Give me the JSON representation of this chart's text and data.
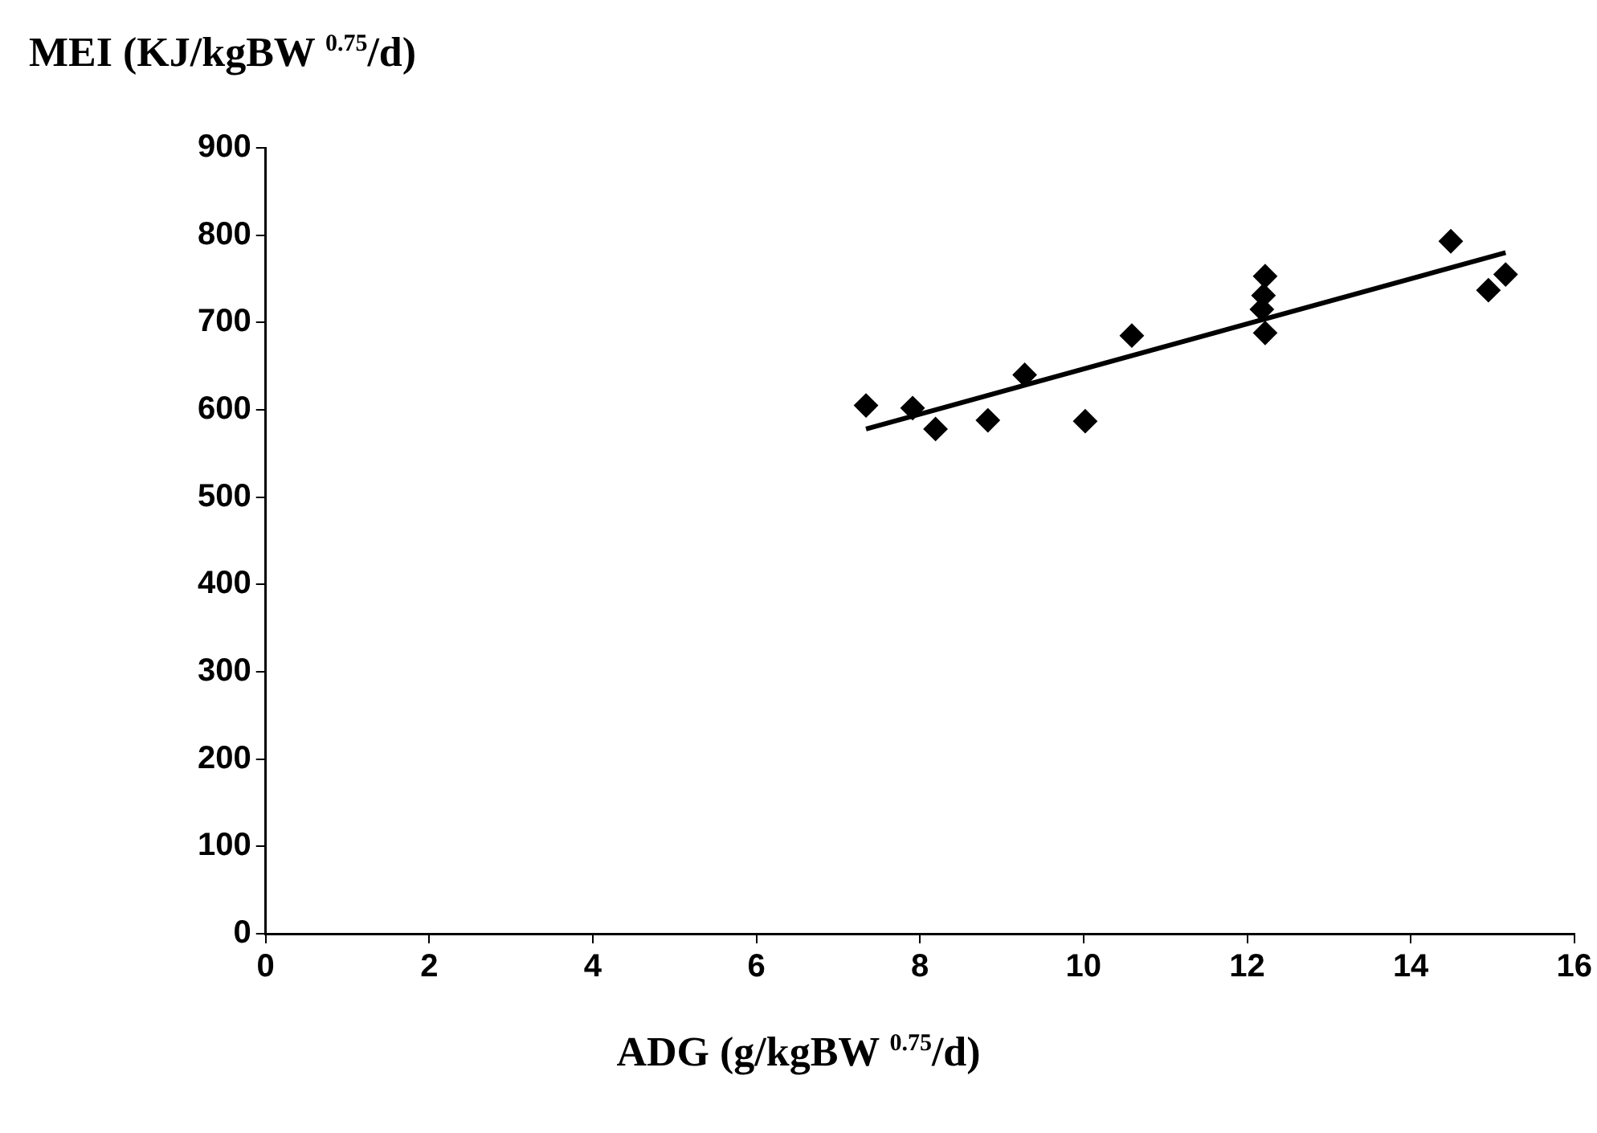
{
  "chart_data": {
    "type": "scatter",
    "xlabel": "ADG (g/kgBW $^{0.75}$/d)",
    "ylabel": "MEI (KJ/kgBW $^{0.75}$/d)",
    "marker": "diamond",
    "grid": false,
    "legend": false,
    "xlim": [
      0,
      16
    ],
    "xticks": [
      0,
      2,
      4,
      6,
      8,
      10,
      12,
      14,
      16
    ],
    "ylim": [
      0,
      900
    ],
    "yticks": [
      0,
      100,
      200,
      300,
      400,
      500,
      600,
      700,
      800,
      900
    ],
    "series": [
      {
        "color": "#000000",
        "x": [
          7.34,
          7.91,
          8.19,
          8.83,
          9.28,
          10.02,
          10.59,
          12.22,
          12.2,
          12.18,
          12.22,
          14.49,
          14.95,
          15.16
        ],
        "values": [
          605,
          602,
          578,
          588,
          640,
          587,
          685,
          753,
          731,
          715,
          688,
          793,
          737,
          755
        ]
      },
      {
        "type": "line",
        "color": "#000000",
        "marker": "none",
        "x": [
          7.34,
          15.16
        ],
        "values": [
          578,
          780
        ]
      }
    ]
  }
}
